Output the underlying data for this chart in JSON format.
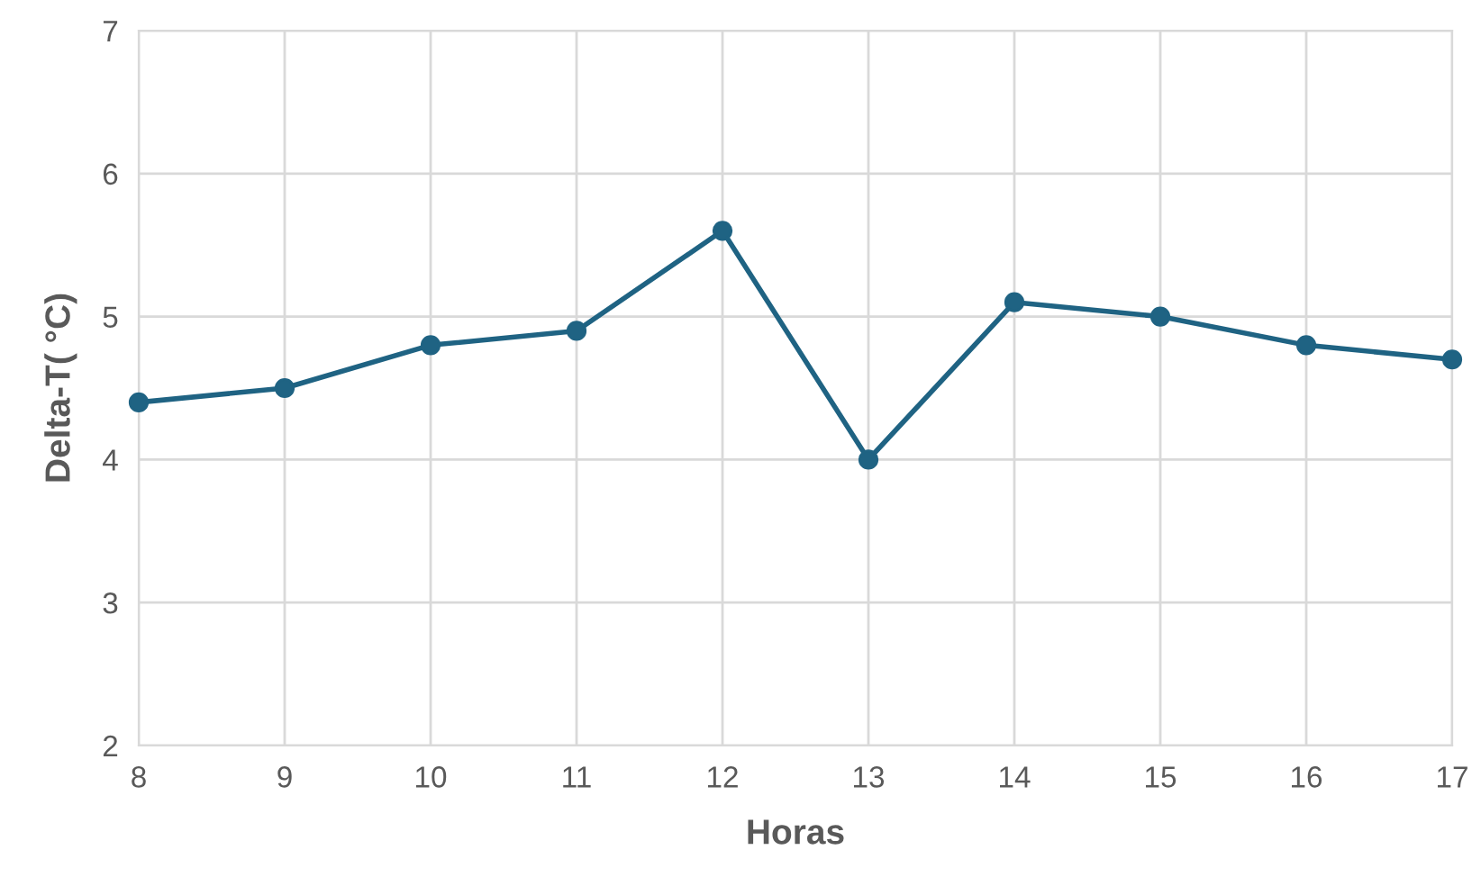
{
  "chart_data": {
    "type": "line",
    "xlabel": "Horas",
    "ylabel": "Delta-T( °C)",
    "x": [
      8,
      9,
      10,
      11,
      12,
      13,
      14,
      15,
      16,
      17
    ],
    "series": [
      {
        "color": "#1f6383",
        "values": [
          4.4,
          4.5,
          4.8,
          4.9,
          5.6,
          4.0,
          5.1,
          5.0,
          4.8,
          4.7
        ]
      }
    ],
    "xlim": [
      8,
      17
    ],
    "xticks": [
      8,
      9,
      10,
      11,
      12,
      13,
      14,
      15,
      16,
      17
    ],
    "ylim": [
      2,
      7
    ],
    "yticks": [
      2,
      3,
      4,
      5,
      6,
      7
    ],
    "grid": true,
    "marker": "circle",
    "line_style": "solid"
  }
}
